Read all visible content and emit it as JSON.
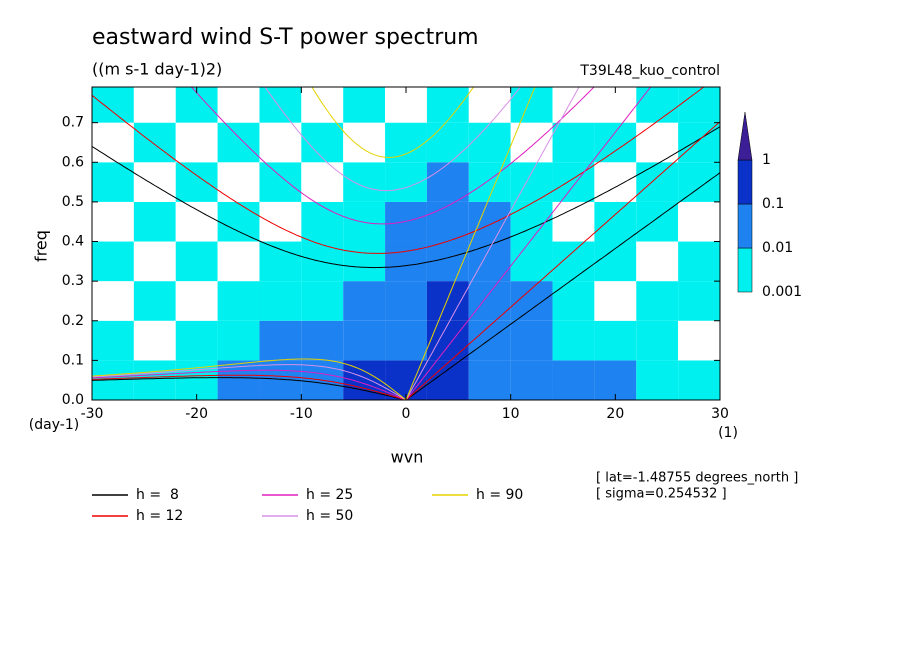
{
  "chart_data": {
    "type": "contour",
    "title": "eastward wind S-T power spectrum",
    "subtitle": "((m s-1 day-1)2)",
    "run_label": "T39L48_kuo_control",
    "annotations": [
      "[ lat=-1.48755 degrees_north ]",
      "[ sigma=0.254532 ]"
    ],
    "x_label": "wvn",
    "x_unit": "(1)",
    "y_label": "freq",
    "y_unit": "(day-1)",
    "xlim": [
      -30,
      30
    ],
    "ylim": [
      0,
      0.79
    ],
    "xticks": [
      -30,
      -20,
      -10,
      0,
      10,
      20,
      30
    ],
    "yticks": [
      {
        "value": 0,
        "label": "0.0"
      },
      0.1,
      0.2,
      0.3,
      0.4,
      0.5,
      0.6,
      0.7
    ],
    "x": [
      -28,
      -24,
      -20,
      -16,
      -12,
      -8,
      -4,
      0,
      4,
      8,
      12,
      16,
      20,
      24,
      28
    ],
    "y": [
      0.05,
      0.15,
      0.25,
      0.35,
      0.45,
      0.55,
      0.65,
      0.75
    ],
    "z": [
      [
        0.005,
        0.005,
        0.005,
        0.02,
        0.02,
        0.05,
        0.2,
        0.2,
        0.2,
        0.05,
        0.05,
        0.02,
        0.01,
        0.005,
        0.005
      ],
      [
        0.005,
        0.0005,
        0.005,
        0.005,
        0.01,
        0.02,
        0.05,
        0.05,
        0.2,
        0.05,
        0.02,
        0.005,
        0.005,
        0.005,
        0.0005
      ],
      [
        0.0005,
        0.005,
        0.0005,
        0.005,
        0.005,
        0.005,
        0.02,
        0.05,
        0.2,
        0.05,
        0.02,
        0.005,
        0.0005,
        0.005,
        0.005
      ],
      [
        0.005,
        0.0005,
        0.005,
        0.0005,
        0.005,
        0.005,
        0.005,
        0.02,
        0.05,
        0.02,
        0.005,
        0.005,
        0.005,
        0.0005,
        0.005
      ],
      [
        0.0005,
        0.005,
        0.0005,
        0.005,
        0.0005,
        0.005,
        0.005,
        0.02,
        0.05,
        0.02,
        0.005,
        0.0005,
        0.005,
        0.005,
        0.0005
      ],
      [
        0.005,
        0.0005,
        0.005,
        0.0005,
        0.005,
        0.0005,
        0.005,
        0.005,
        0.02,
        0.005,
        0.005,
        0.005,
        0.0005,
        0.005,
        0.005
      ],
      [
        0.0005,
        0.005,
        0.0005,
        0.005,
        0.0005,
        0.005,
        0.0005,
        0.005,
        0.005,
        0.005,
        0.0005,
        0.005,
        0.005,
        0.0005,
        0.005
      ],
      [
        0.005,
        0.0005,
        0.005,
        0.0005,
        0.005,
        0.0005,
        0.005,
        0.0005,
        0.005,
        0.0005,
        0.005,
        0.0005,
        0.0005,
        0.005,
        0.005
      ]
    ],
    "levels": [
      0.001,
      0.01,
      0.1,
      1
    ],
    "level_colors": [
      "#00f0f0",
      "#1e82f0",
      "#0a32c8",
      "#3c1e96"
    ],
    "series": [
      {
        "name": "h =  8",
        "color": "#000000"
      },
      {
        "name": "h = 12",
        "color": "#f00000"
      },
      {
        "name": "h = 25",
        "color": "#e01ec0"
      },
      {
        "name": "h = 50",
        "color": "#d890e8"
      },
      {
        "name": "h = 90",
        "color": "#e6d200"
      }
    ]
  }
}
